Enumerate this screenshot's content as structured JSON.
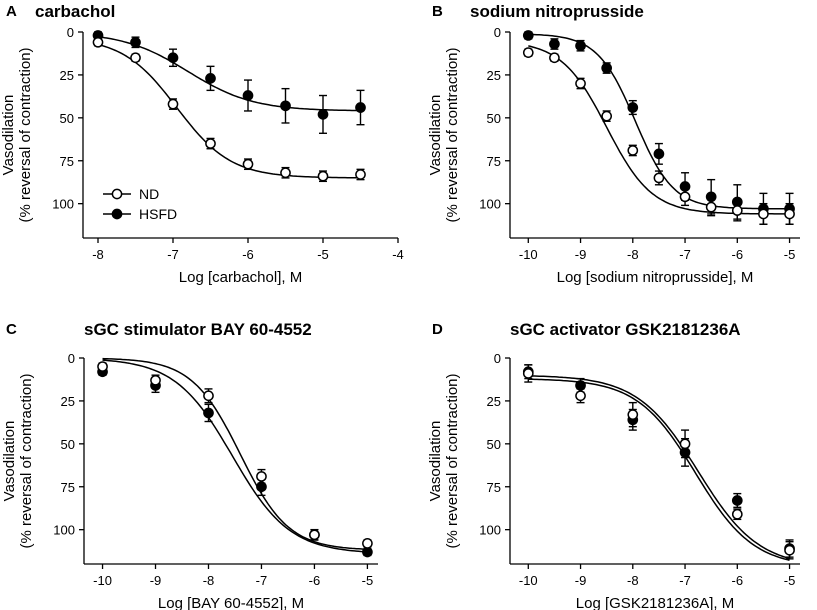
{
  "figure": {
    "y_axis_label_line1": "Vasodilation",
    "y_axis_label_line2": "(% reversal of contraction)",
    "legend": [
      {
        "label": "ND",
        "marker": "open-circle"
      },
      {
        "label": "HSFD",
        "marker": "filled-circle"
      }
    ],
    "colors": {
      "stroke": "#000000",
      "background": "#ffffff"
    }
  },
  "chart_data": [
    {
      "panel": "A",
      "type": "scatter",
      "title": "carbachol",
      "xlabel": "Log [carbachol], M",
      "ylabel": "Vasodilation (% reversal of contraction)",
      "xlim": [
        -8.2,
        -4
      ],
      "ylim": [
        0,
        120
      ],
      "y_inverted": true,
      "xticks": [
        -8,
        -7,
        -6,
        -5,
        -4
      ],
      "yticks": [
        0,
        25,
        50,
        75,
        100
      ],
      "show_legend": true,
      "series": [
        {
          "name": "ND",
          "marker": "open",
          "x": [
            -8,
            -7.5,
            -7,
            -6.5,
            -6,
            -5.5,
            -5,
            -4.5
          ],
          "y": [
            6,
            15,
            42,
            65,
            77,
            82,
            84,
            83
          ],
          "err": [
            2,
            2,
            3,
            3,
            3,
            3,
            3,
            3
          ],
          "fit": {
            "bottom": 3,
            "top": 85,
            "logEC50": -6.95,
            "hill": 1.2
          }
        },
        {
          "name": "HSFD",
          "marker": "filled",
          "x": [
            -8,
            -7.5,
            -7,
            -6.5,
            -6,
            -5.5,
            -5,
            -4.5
          ],
          "y": [
            2,
            6,
            15,
            27,
            37,
            43,
            48,
            44
          ],
          "err": [
            2,
            3,
            5,
            7,
            9,
            10,
            11,
            10
          ],
          "fit": {
            "bottom": 0,
            "top": 46,
            "logEC50": -6.8,
            "hill": 1.0
          }
        }
      ]
    },
    {
      "panel": "B",
      "type": "scatter",
      "title": "sodium nitroprusside",
      "xlabel": "Log [sodium nitroprusside], M",
      "ylabel": "Vasodilation (% reversal of contraction)",
      "xlim": [
        -10.35,
        -4.8
      ],
      "ylim": [
        0,
        120
      ],
      "y_inverted": true,
      "xticks": [
        -10,
        -9,
        -8,
        -7,
        -6,
        -5
      ],
      "yticks": [
        0,
        25,
        50,
        75,
        100
      ],
      "show_legend": false,
      "series": [
        {
          "name": "ND",
          "marker": "open",
          "x": [
            -10,
            -9.5,
            -9,
            -8.5,
            -8,
            -7.5,
            -7,
            -6.5,
            -6,
            -5.5,
            -5
          ],
          "y": [
            12,
            15,
            30,
            49,
            69,
            85,
            96,
            102,
            104,
            106,
            106
          ],
          "err": [
            2,
            2,
            3,
            3,
            3,
            4,
            5,
            5,
            6,
            6,
            6
          ],
          "fit": {
            "bottom": 5,
            "top": 106,
            "logEC50": -8.5,
            "hill": 1.0
          }
        },
        {
          "name": "HSFD",
          "marker": "filled",
          "x": [
            -10,
            -9.5,
            -9,
            -8.5,
            -8,
            -7.5,
            -7,
            -6.5,
            -6,
            -5.5,
            -5
          ],
          "y": [
            2,
            7,
            8,
            21,
            44,
            71,
            90,
            96,
            99,
            103,
            103
          ],
          "err": [
            2,
            3,
            3,
            3,
            4,
            6,
            8,
            10,
            10,
            9,
            9
          ],
          "fit": {
            "bottom": 1,
            "top": 103,
            "logEC50": -7.95,
            "hill": 1.2
          }
        }
      ]
    },
    {
      "panel": "C",
      "type": "scatter",
      "title": "sGC stimulator BAY 60-4552",
      "xlabel": "Log [BAY 60-4552], M",
      "ylabel": "Vasodilation (% reversal of contraction)",
      "xlim": [
        -10.35,
        -4.8
      ],
      "ylim": [
        0,
        120
      ],
      "y_inverted": true,
      "xticks": [
        -10,
        -9,
        -8,
        -7,
        -6,
        -5
      ],
      "yticks": [
        0,
        25,
        50,
        75,
        100
      ],
      "show_legend": false,
      "series": [
        {
          "name": "ND",
          "marker": "open",
          "x": [
            -10,
            -9,
            -8,
            -7,
            -6,
            -5
          ],
          "y": [
            5,
            13,
            22,
            69,
            103,
            108
          ],
          "err": [
            2,
            3,
            4,
            4,
            3,
            2
          ],
          "fit": {
            "bottom": 0,
            "top": 112,
            "logEC50": -7.4,
            "hill": 0.95
          }
        },
        {
          "name": "HSFD",
          "marker": "filled",
          "x": [
            -10,
            -9,
            -8,
            -7,
            -6,
            -5
          ],
          "y": [
            8,
            16,
            32,
            75,
            103,
            113
          ],
          "err": [
            2,
            4,
            5,
            5,
            3,
            2
          ],
          "fit": {
            "bottom": 0,
            "top": 114,
            "logEC50": -7.55,
            "hill": 0.8
          }
        }
      ]
    },
    {
      "panel": "D",
      "type": "scatter",
      "title": "sGC activator GSK2181236A",
      "xlabel": "Log [GSK2181236A], M",
      "ylabel": "Vasodilation (% reversal of contraction)",
      "xlim": [
        -10.35,
        -4.8
      ],
      "ylim": [
        0,
        120
      ],
      "y_inverted": true,
      "xticks": [
        -10,
        -9,
        -8,
        -7,
        -6,
        -5
      ],
      "yticks": [
        0,
        25,
        50,
        75,
        100
      ],
      "show_legend": false,
      "series": [
        {
          "name": "ND",
          "marker": "open",
          "x": [
            -10,
            -9,
            -8,
            -7,
            -6,
            -5
          ],
          "y": [
            9,
            22,
            33,
            50,
            91,
            112
          ],
          "err": [
            5,
            4,
            7,
            8,
            3,
            5
          ],
          "fit": {
            "bottom": 10,
            "top": 122,
            "logEC50": -6.75,
            "hill": 0.75
          }
        },
        {
          "name": "HSFD",
          "marker": "filled",
          "x": [
            -10,
            -9,
            -8,
            -7,
            -6,
            -5
          ],
          "y": [
            8,
            16,
            36,
            55,
            83,
            111
          ],
          "err": [
            4,
            4,
            6,
            8,
            4,
            5
          ],
          "fit": {
            "bottom": 12,
            "top": 122,
            "logEC50": -6.8,
            "hill": 0.78
          }
        }
      ]
    }
  ]
}
